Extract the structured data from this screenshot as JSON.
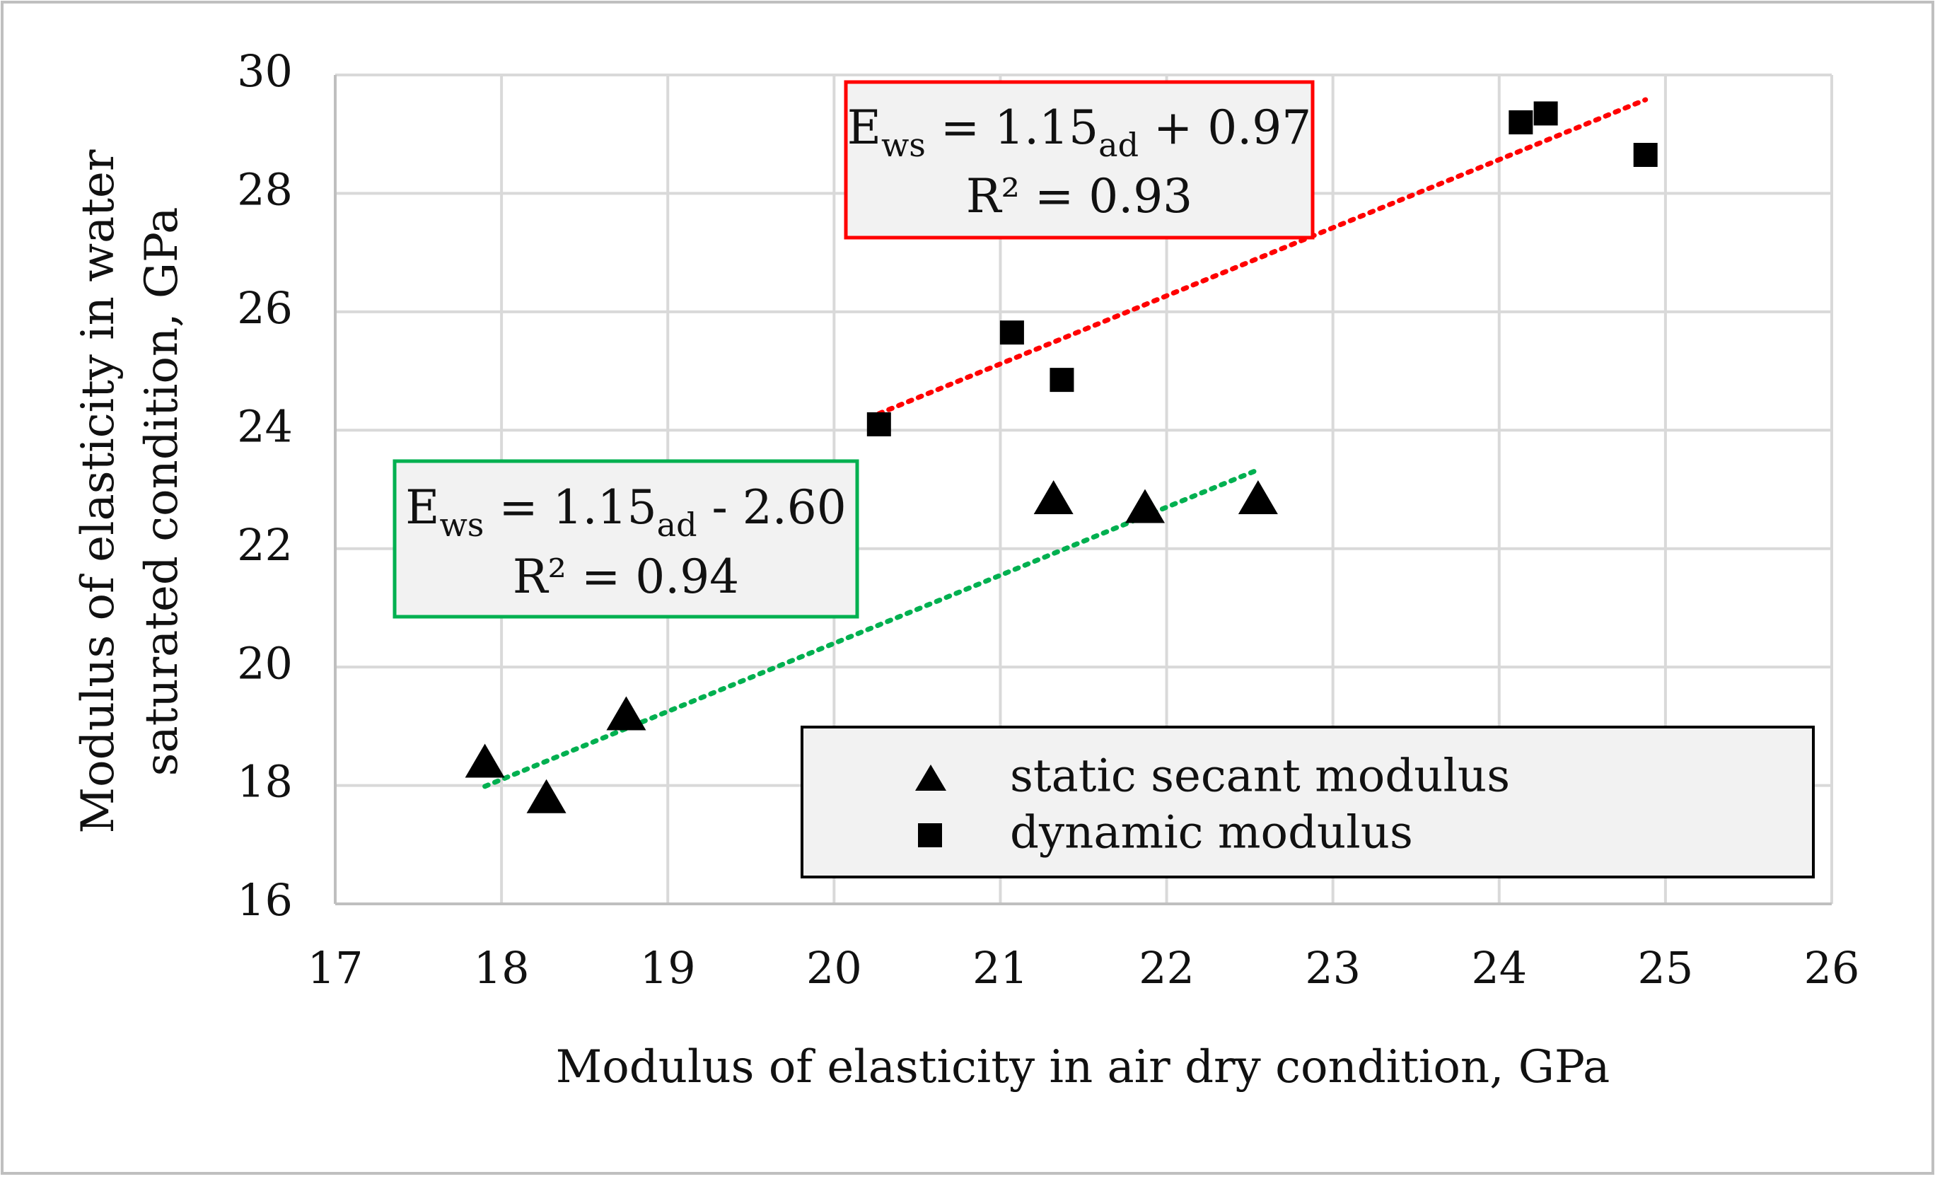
{
  "chart_data": {
    "type": "scatter",
    "title": "",
    "xlabel": "Modulus of elasticity in air dry condition, GPa",
    "ylabel_lines": [
      "Modulus of elasticity in water",
      "saturated condition, GPa"
    ],
    "xlim": [
      17,
      26
    ],
    "ylim": [
      16,
      30
    ],
    "x_ticks": [
      17,
      18,
      19,
      20,
      21,
      22,
      23,
      24,
      25,
      26
    ],
    "y_ticks": [
      16,
      18,
      20,
      22,
      24,
      26,
      28,
      30
    ],
    "grid": true,
    "legend_position": "bottom-right",
    "series": [
      {
        "name": "static secant modulus",
        "marker": "triangle",
        "color": "#000000",
        "points": [
          {
            "x": 17.9,
            "y": 18.35
          },
          {
            "x": 18.27,
            "y": 17.75
          },
          {
            "x": 18.75,
            "y": 19.15
          },
          {
            "x": 21.32,
            "y": 22.8
          },
          {
            "x": 21.87,
            "y": 22.65
          },
          {
            "x": 22.55,
            "y": 22.8
          }
        ],
        "trendline": {
          "color": "#00b050",
          "x_range": [
            17.9,
            22.55
          ],
          "slope": 1.15,
          "intercept": -2.6
        },
        "equation": {
          "E": "E",
          "lhs_sub": "ws",
          "mid": " = 1.15",
          "rhs_sub": "ad",
          "rest": " - 2.60",
          "r2": "R² = 0.94",
          "border_color": "#00b050"
        }
      },
      {
        "name": "dynamic modulus",
        "marker": "square",
        "color": "#000000",
        "points": [
          {
            "x": 20.27,
            "y": 24.1
          },
          {
            "x": 21.07,
            "y": 25.65
          },
          {
            "x": 21.37,
            "y": 24.85
          },
          {
            "x": 24.13,
            "y": 29.2
          },
          {
            "x": 24.28,
            "y": 29.35
          },
          {
            "x": 24.88,
            "y": 28.65
          }
        ],
        "trendline": {
          "color": "#ff0000",
          "x_range": [
            20.27,
            24.88
          ],
          "slope": 1.15,
          "intercept": 0.97
        },
        "equation": {
          "E": "E",
          "lhs_sub": "ws",
          "mid": " = 1.15",
          "rhs_sub": "ad",
          "rest": " + 0.97",
          "r2": "R² = 0.93",
          "border_color": "#ff0000"
        }
      }
    ]
  }
}
